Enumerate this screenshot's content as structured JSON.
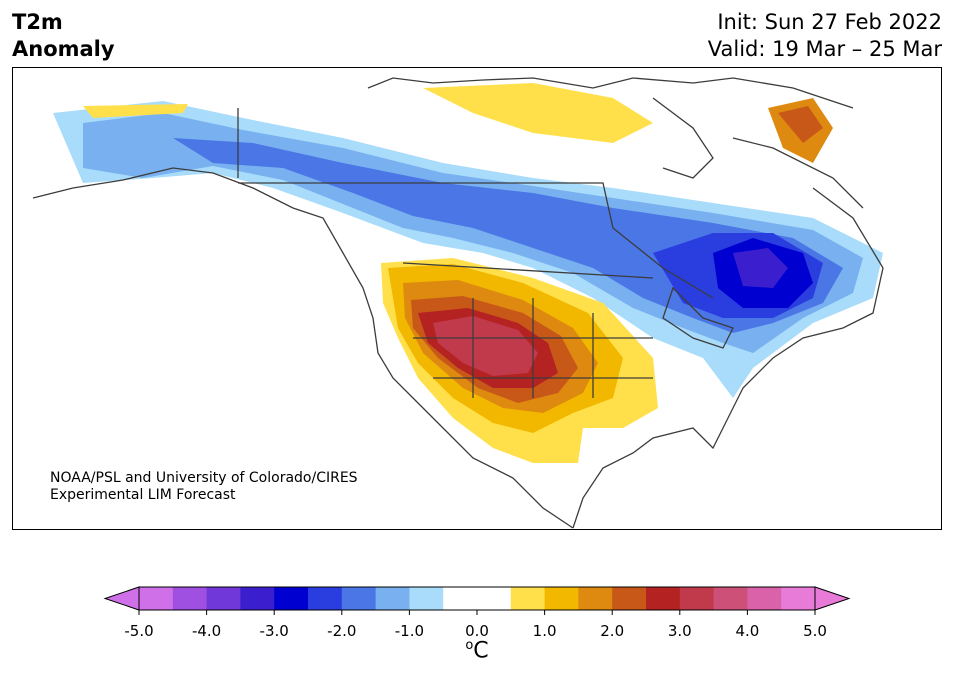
{
  "header": {
    "variable_line1": "T2m",
    "variable_line2": "Anomaly",
    "init": "Init: Sun 27 Feb 2022",
    "valid": "Valid: 19 Mar – 25 Mar"
  },
  "credit": {
    "line1": "NOAA/PSL and University of Colorado/CIRES",
    "line2": "Experimental LIM Forecast"
  },
  "colorbar": {
    "ticks": [
      "-5.0",
      "-4.0",
      "-3.0",
      "-2.0",
      "-1.0",
      "0.0",
      "1.0",
      "2.0",
      "3.0",
      "4.0",
      "5.0"
    ],
    "unit_super": "o",
    "unit_main": "C",
    "min": -5.0,
    "max": 5.0,
    "step": 0.5,
    "under_color": "#d070e8",
    "over_color": "#e87ad8",
    "colors": [
      "#d070e8",
      "#a050e0",
      "#7038d8",
      "#3b1fcf",
      "#0000d0",
      "#2a3ee0",
      "#4a76e6",
      "#78b0f0",
      "#a8dcfa",
      "#ffffff",
      "#ffffff",
      "#ffe04a",
      "#f2b800",
      "#de8a10",
      "#c85818",
      "#b42222",
      "#c03a4c",
      "#cc5078",
      "#da62a8",
      "#e87ad8"
    ]
  },
  "map_legend": {
    "strong_cold": "#3b1fcf",
    "cold": "#0000d0",
    "cool": "#4a76e6",
    "mild_cool": "#78b0f0",
    "slight_cool": "#a8dcfa",
    "slight_warm": "#ffe04a",
    "warm": "#f2b800",
    "warmer": "#de8a10",
    "hot": "#c85818",
    "very_hot": "#b42222",
    "extreme_hot": "#c03a4c"
  }
}
